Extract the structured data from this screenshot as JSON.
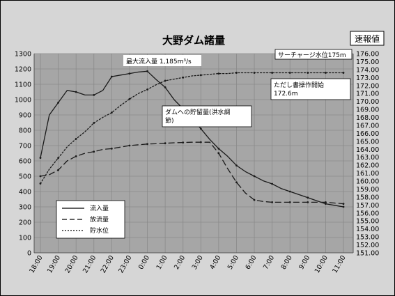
{
  "chart_data": {
    "type": "line",
    "title": "大野ダム諸量",
    "badge": "速報値",
    "categories": [
      "18:00",
      "19:00",
      "20:00",
      "21:00",
      "22:00",
      "23:00",
      "0:00",
      "1:00",
      "2:00",
      "3:00",
      "4:00",
      "5:00",
      "6:00",
      "7:00",
      "8:00",
      "9:00",
      "10:00",
      "11:00"
    ],
    "y_left": {
      "min": 0,
      "max": 1300,
      "step": 100
    },
    "y_right": {
      "min": 151.0,
      "max": 176.0,
      "step": 1.0
    },
    "grid": true,
    "series": [
      {
        "name": "流入量",
        "style": "solid",
        "axis": "left",
        "x": [
          0,
          0.5,
          1,
          1.5,
          2,
          2.5,
          3,
          3.5,
          4,
          4.5,
          5,
          5.5,
          6,
          6.5,
          7,
          7.5,
          8,
          8.5,
          9,
          9.5,
          10,
          10.5,
          11,
          11.5,
          12,
          12.5,
          13,
          13.5,
          14,
          14.5,
          15,
          15.5,
          16,
          16.5,
          17
        ],
        "values": [
          620,
          900,
          980,
          1060,
          1050,
          1030,
          1030,
          1060,
          1150,
          1160,
          1170,
          1180,
          1185,
          1130,
          1080,
          1000,
          940,
          880,
          810,
          740,
          680,
          630,
          570,
          530,
          500,
          470,
          450,
          420,
          400,
          380,
          360,
          340,
          320,
          310,
          300
        ]
      },
      {
        "name": "放流量",
        "style": "dashed",
        "axis": "left",
        "x": [
          0,
          0.5,
          1,
          1.5,
          2,
          2.5,
          3,
          3.5,
          4,
          4.5,
          5,
          5.5,
          6,
          6.5,
          7,
          7.5,
          8,
          8.5,
          9,
          9.5,
          10,
          10.5,
          11,
          11.5,
          12,
          12.5,
          13,
          13.5,
          14,
          14.5,
          15,
          15.5,
          16,
          16.5,
          17
        ],
        "values": [
          500,
          510,
          540,
          600,
          630,
          650,
          660,
          675,
          680,
          690,
          700,
          705,
          710,
          712,
          715,
          718,
          720,
          722,
          722,
          722,
          650,
          550,
          460,
          390,
          345,
          335,
          330,
          330,
          330,
          330,
          330,
          330,
          330,
          325,
          320
        ]
      },
      {
        "name": "貯水位",
        "style": "dotted",
        "axis": "right",
        "x": [
          0,
          0.5,
          1,
          1.5,
          2,
          2.5,
          3,
          3.5,
          4,
          4.5,
          5,
          5.5,
          6,
          6.5,
          7,
          7.5,
          8,
          8.5,
          9,
          9.5,
          10,
          10.5,
          11,
          11.5,
          12,
          12.5,
          13,
          13.5,
          14,
          14.5,
          15,
          15.5,
          16,
          16.5,
          17
        ],
        "values": [
          159.7,
          161.5,
          162.9,
          164.3,
          165.3,
          166.2,
          167.3,
          168.0,
          168.6,
          169.5,
          170.3,
          171.0,
          171.5,
          172.1,
          172.6,
          172.8,
          173.0,
          173.2,
          173.3,
          173.4,
          173.5,
          173.5,
          173.6,
          173.6,
          173.6,
          173.6,
          173.6,
          173.6,
          173.6,
          173.6,
          173.6,
          173.6,
          173.6,
          173.6,
          173.6
        ]
      }
    ],
    "annotations": [
      {
        "id": "peak",
        "text": "最大流入量 1,185m³/s"
      },
      {
        "id": "storage",
        "line1": "ダムへの貯留量(洪水調",
        "line2": "節)"
      },
      {
        "id": "tadashi",
        "line1": "ただし書操作開始",
        "line2": "172.6m"
      },
      {
        "id": "surcharge",
        "text": "サーチャージ水位175m"
      }
    ],
    "legend": {
      "position": "bottom-left",
      "items": [
        {
          "label": "流入量",
          "style": "solid"
        },
        {
          "label": "放流量",
          "style": "dashed"
        },
        {
          "label": "貯水位",
          "style": "dotted"
        }
      ]
    },
    "colors": {
      "plot_bg": "#a6a6a6",
      "outer_bg": "#d6d6d6",
      "gridline": "#8a8a8a",
      "line": "#1a1a1a",
      "box": "#ffffff"
    }
  }
}
